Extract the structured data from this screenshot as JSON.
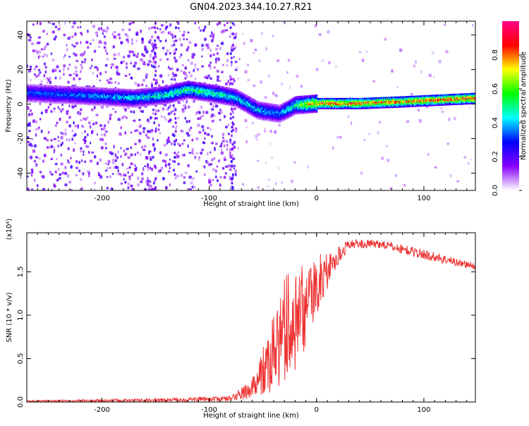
{
  "title": "GN04.2023.344.10.27.R21",
  "chart_data": [
    {
      "type": "heatmap",
      "xlabel": "Height of straight line (km)",
      "ylabel": "Frequency (Hz)",
      "xlim": [
        -270,
        148
      ],
      "ylim": [
        -50,
        48
      ],
      "xticks": [
        -200,
        -100,
        0,
        100
      ],
      "yticks": [
        -40,
        -20,
        0,
        20,
        40
      ],
      "colorbar": {
        "label": "Normalized spectral amplitude",
        "ticks": [
          0.0,
          0.2,
          0.4,
          0.6,
          0.8
        ],
        "range": [
          0,
          1
        ],
        "colors": [
          "#ffffff",
          "#8800ff",
          "#0000ff",
          "#00ffff",
          "#00ff00",
          "#ffff00",
          "#ff0000",
          "#ff0088"
        ]
      },
      "ridge": [
        {
          "x": -270,
          "f": 7,
          "a": 0.35
        },
        {
          "x": -200,
          "f": 5,
          "a": 0.4
        },
        {
          "x": -170,
          "f": 4,
          "a": 0.45
        },
        {
          "x": -140,
          "f": 6,
          "a": 0.5
        },
        {
          "x": -120,
          "f": 9,
          "a": 0.55
        },
        {
          "x": -90,
          "f": 6,
          "a": 0.5
        },
        {
          "x": -75,
          "f": 4,
          "a": 0.45
        },
        {
          "x": -55,
          "f": -3,
          "a": 0.45
        },
        {
          "x": -35,
          "f": -5,
          "a": 0.4
        },
        {
          "x": -20,
          "f": 0,
          "a": 0.55
        },
        {
          "x": 0,
          "f": 1,
          "a": 0.85
        },
        {
          "x": 40,
          "f": 1,
          "a": 0.9
        },
        {
          "x": 80,
          "f": 2,
          "a": 0.85
        },
        {
          "x": 148,
          "f": 4,
          "a": 0.9
        }
      ]
    },
    {
      "type": "line",
      "xlabel": "Height of straight line (km)",
      "ylabel": "SNR (10 * v/v)",
      "multiplier": "(x10⁴)",
      "xlim": [
        -270,
        148
      ],
      "ylim": [
        0,
        1.95
      ],
      "xticks": [
        -200,
        -100,
        0,
        100
      ],
      "yticks": [
        0.0,
        0.5,
        1.0,
        1.5
      ],
      "series": [
        {
          "color": "#ee3333",
          "envelope": [
            {
              "x": -270,
              "y": 0.01,
              "noise": 0.01
            },
            {
              "x": -150,
              "y": 0.02,
              "noise": 0.02
            },
            {
              "x": -80,
              "y": 0.04,
              "noise": 0.03
            },
            {
              "x": -60,
              "y": 0.15,
              "noise": 0.12
            },
            {
              "x": -45,
              "y": 0.45,
              "noise": 0.35
            },
            {
              "x": -30,
              "y": 0.8,
              "noise": 0.65
            },
            {
              "x": -15,
              "y": 1.05,
              "noise": 0.6
            },
            {
              "x": 0,
              "y": 1.35,
              "noise": 0.35
            },
            {
              "x": 15,
              "y": 1.6,
              "noise": 0.15
            },
            {
              "x": 30,
              "y": 1.82,
              "noise": 0.05
            },
            {
              "x": 60,
              "y": 1.82,
              "noise": 0.05
            },
            {
              "x": 100,
              "y": 1.7,
              "noise": 0.06
            },
            {
              "x": 148,
              "y": 1.56,
              "noise": 0.04
            }
          ]
        }
      ]
    }
  ]
}
